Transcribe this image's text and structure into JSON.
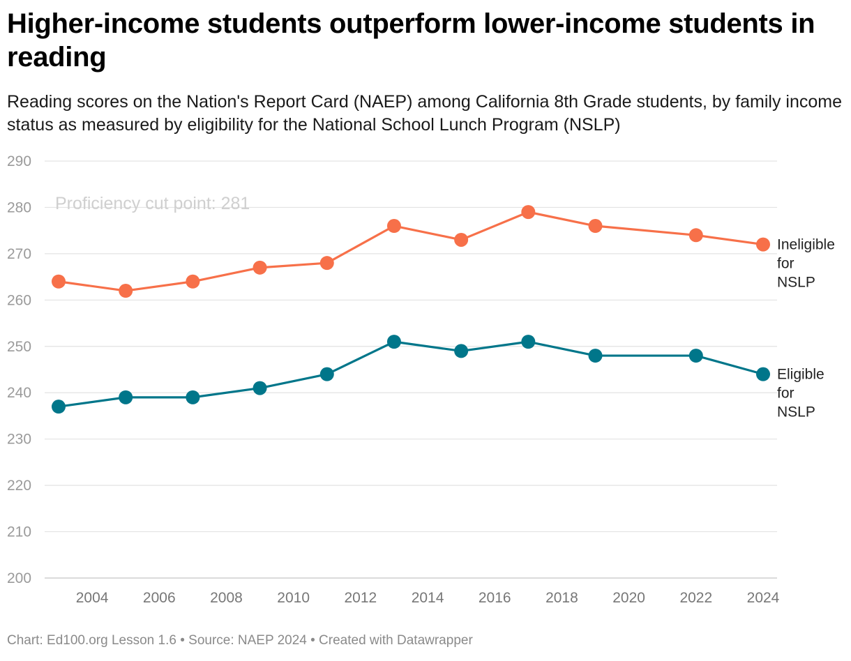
{
  "title": "Higher-income students outperform lower-income students in reading",
  "subtitle": "Reading scores on the Nation's Report Card (NAEP) among California 8th Grade students, by family income status as measured by eligibility for the National School Lunch Program (NSLP)",
  "footer": "Chart: Ed100.org Lesson 1.6 • Source: NAEP 2024 • Created with Datawrapper",
  "chart_data": {
    "type": "line",
    "x": [
      2003,
      2005,
      2007,
      2009,
      2011,
      2013,
      2015,
      2017,
      2019,
      2022,
      2024
    ],
    "x_ticks": [
      "2004",
      "2006",
      "2008",
      "2010",
      "2012",
      "2014",
      "2016",
      "2018",
      "2020",
      "2022",
      "2024"
    ],
    "xlim": [
      2003,
      2024
    ],
    "ylim": [
      200,
      290
    ],
    "y_ticks": [
      "200",
      "210",
      "220",
      "230",
      "240",
      "250",
      "260",
      "270",
      "280",
      "290"
    ],
    "grid": true,
    "annotation": "Proficiency cut point: 281",
    "series": [
      {
        "name": "Ineligible for NSLP",
        "label_lines": [
          "Ineligible",
          "for",
          "NSLP"
        ],
        "color": "#f77049",
        "values": [
          264,
          262,
          264,
          267,
          268,
          276,
          273,
          279,
          276,
          274,
          272
        ]
      },
      {
        "name": "Eligible for NSLP",
        "label_lines": [
          "Eligible",
          "for",
          "NSLP"
        ],
        "color": "#00768a",
        "values": [
          237,
          239,
          239,
          241,
          244,
          251,
          249,
          251,
          248,
          248,
          244
        ]
      }
    ]
  }
}
